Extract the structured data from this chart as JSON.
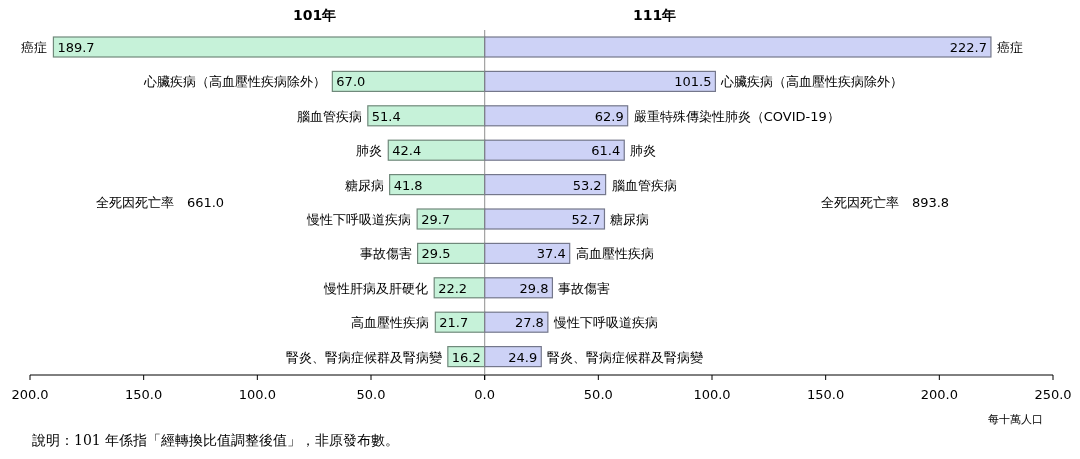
{
  "chart_data": [
    {
      "type": "bar",
      "orientation": "horizontal",
      "title": "101年",
      "categories": [
        "癌症",
        "心臟疾病（高血壓性疾病除外）",
        "腦血管疾病",
        "肺炎",
        "糖尿病",
        "慢性下呼吸道疾病",
        "事故傷害",
        "慢性肝病及肝硬化",
        "高血壓性疾病",
        "腎炎、腎病症候群及腎病變"
      ],
      "values": [
        189.7,
        67.0,
        51.4,
        42.4,
        41.8,
        29.7,
        29.5,
        22.2,
        21.7,
        16.2
      ],
      "color": "#c6f2d9",
      "value_labels": [
        "189.7",
        "67.0",
        "51.4",
        "42.4",
        "41.8",
        "29.7",
        "29.5",
        "22.2",
        "21.7",
        "16.2"
      ],
      "xlim": [
        200,
        0
      ],
      "xticks": [
        {
          "value": 200,
          "label": "200.0"
        },
        {
          "value": 150,
          "label": "150.0"
        },
        {
          "value": 100,
          "label": "100.0"
        },
        {
          "value": 50,
          "label": "50.0"
        },
        {
          "value": 0,
          "label": null
        }
      ],
      "annotations": [
        "全死因死亡率　661.0",
        "說明：101 年係指「經轉換比值調整後值」，非原發布數。"
      ]
    },
    {
      "type": "bar",
      "orientation": "horizontal",
      "title": "111年",
      "xlabel": "每十萬人口",
      "categories": [
        "癌症",
        "心臟疾病（高血壓性疾病除外）",
        "嚴重特殊傳染性肺炎（COVID-19）",
        "肺炎",
        "腦血管疾病",
        "糖尿病",
        "高血壓性疾病",
        "事故傷害",
        "慢性下呼吸道疾病",
        "腎炎、腎病症候群及腎病變"
      ],
      "values": [
        222.7,
        101.5,
        62.9,
        61.4,
        53.2,
        52.7,
        37.4,
        29.8,
        27.8,
        24.9
      ],
      "color": "#cdd2f6",
      "value_labels": [
        "222.7",
        "101.5",
        "62.9",
        "61.4",
        "53.2",
        "52.7",
        "37.4",
        "29.8",
        "27.8",
        "24.9"
      ],
      "xlim": [
        0,
        250
      ],
      "xticks": [
        {
          "value": 0,
          "label": "0.0"
        },
        {
          "value": 50,
          "label": "50.0"
        },
        {
          "value": 100,
          "label": "100.0"
        },
        {
          "value": 150,
          "label": "150.0"
        },
        {
          "value": 200,
          "label": "200.0"
        },
        {
          "value": 250,
          "label": "250.0"
        }
      ],
      "annotations": [
        "全死因死亡率　893.8"
      ]
    }
  ]
}
